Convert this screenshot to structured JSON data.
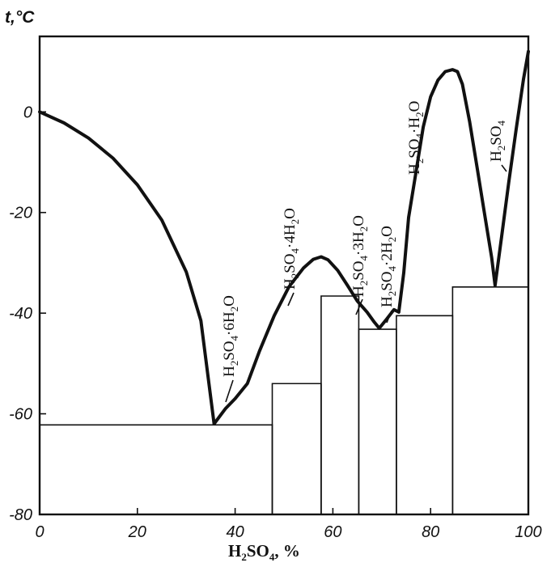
{
  "chart_data": {
    "type": "line",
    "title": "",
    "xlabel": {
      "main": "H",
      "sub1": "2",
      "mid": "SO",
      "sub2": "4",
      "suffix": ", %"
    },
    "ylabel": "t,°C",
    "xlim": [
      0,
      100
    ],
    "ylim": [
      -80,
      15
    ],
    "xticks": [
      {
        "value": 0,
        "label": "0"
      },
      {
        "value": 20,
        "label": "20"
      },
      {
        "value": 40,
        "label": "40"
      },
      {
        "value": 60,
        "label": "60"
      },
      {
        "value": 80,
        "label": "80"
      },
      {
        "value": 100,
        "label": "100"
      }
    ],
    "yticks": [
      {
        "value": 0,
        "label": "0"
      },
      {
        "value": -20,
        "label": "-20"
      },
      {
        "value": -40,
        "label": "-40"
      },
      {
        "value": -60,
        "label": "-60"
      },
      {
        "value": -80,
        "label": "-80"
      }
    ],
    "series": [
      {
        "x": [
          0,
          5,
          10,
          15,
          20,
          25,
          30,
          33,
          35.7,
          38,
          40,
          42.5,
          45,
          48,
          51,
          54,
          56,
          57.6,
          59,
          61,
          63,
          65,
          67,
          68.5,
          69.5,
          71,
          72.5,
          73.5,
          74.5,
          75.5,
          77,
          78.5,
          80,
          81.5,
          83,
          84.5,
          85.5,
          86.5,
          88,
          89.5,
          91,
          92.5,
          93.2,
          94.5,
          96,
          97.5,
          99,
          100
        ],
        "y": [
          0,
          -2.2,
          -5.2,
          -9.2,
          -14.5,
          -21.5,
          -31.8,
          -41.5,
          -62,
          -59,
          -57,
          -54,
          -47.5,
          -40.5,
          -34.8,
          -31,
          -29.3,
          -28.8,
          -29.4,
          -31.5,
          -34.5,
          -37.6,
          -39.8,
          -41.8,
          -43,
          -41.2,
          -39.3,
          -39.8,
          -32,
          -21,
          -12,
          -3,
          3,
          6.3,
          8,
          8.4,
          8,
          5.5,
          -2,
          -11,
          -20,
          -29,
          -34.5,
          -25,
          -14,
          -3.5,
          6.5,
          12
        ]
      }
    ],
    "eutectic_boxes": [
      {
        "x1": 0,
        "x2": 47.6,
        "y": -62.2
      },
      {
        "x1": 47.6,
        "x2": 57.6,
        "y": -54
      },
      {
        "x1": 57.6,
        "x2": 65.3,
        "y": -36.6
      },
      {
        "x1": 65.3,
        "x2": 73.0,
        "y": -43.2
      },
      {
        "x1": 73.0,
        "x2": 84.5,
        "y": -40.5
      },
      {
        "x1": 84.5,
        "x2": 100,
        "y": -34.8
      }
    ],
    "annotations": [
      {
        "id": "hex",
        "parts": [
          [
            "H",
            ""
          ],
          [
            "2",
            "sub"
          ],
          [
            "SO",
            ""
          ],
          [
            "4",
            "sub"
          ],
          [
            "·6H",
            ""
          ],
          [
            "2",
            "sub"
          ],
          [
            "O",
            ""
          ]
        ]
      },
      {
        "id": "tetra",
        "parts": [
          [
            "H",
            ""
          ],
          [
            "2",
            "sub"
          ],
          [
            "SO",
            ""
          ],
          [
            "4",
            "sub"
          ],
          [
            "·4H",
            ""
          ],
          [
            "2",
            "sub"
          ],
          [
            "O",
            ""
          ]
        ]
      },
      {
        "id": "tri",
        "parts": [
          [
            "H",
            ""
          ],
          [
            "2",
            "sub"
          ],
          [
            "SO",
            ""
          ],
          [
            "4",
            "sub"
          ],
          [
            "·3H",
            ""
          ],
          [
            "2",
            "sub"
          ],
          [
            "O",
            ""
          ]
        ]
      },
      {
        "id": "di",
        "parts": [
          [
            "H",
            ""
          ],
          [
            "2",
            "sub"
          ],
          [
            "SO",
            ""
          ],
          [
            "4",
            "sub"
          ],
          [
            "·2H",
            ""
          ],
          [
            "2",
            "sub"
          ],
          [
            "O",
            ""
          ]
        ]
      },
      {
        "id": "mono",
        "parts": [
          [
            "H",
            ""
          ],
          [
            "2",
            "sub"
          ],
          [
            "SO",
            ""
          ],
          [
            "4",
            "sub"
          ],
          [
            "·H",
            ""
          ],
          [
            "2",
            "sub"
          ],
          [
            "O",
            ""
          ]
        ]
      },
      {
        "id": "acid",
        "parts": [
          [
            "H",
            ""
          ],
          [
            "2",
            "sub"
          ],
          [
            "SO",
            ""
          ],
          [
            "4",
            "sub"
          ]
        ]
      }
    ]
  }
}
